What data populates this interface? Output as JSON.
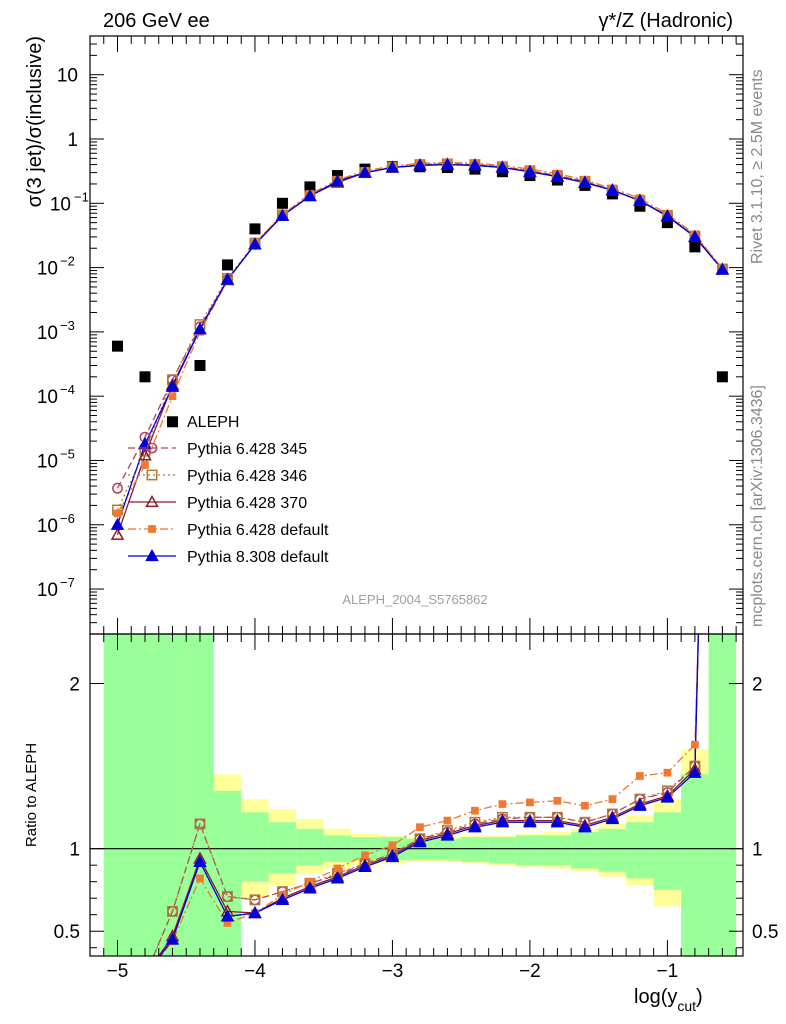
{
  "header": {
    "left": "206 GeV ee",
    "right": "γ*/Z (Hadronic)"
  },
  "side_text": {
    "rivet": "Rivet 3.1.10, ≥ 2.5M events",
    "mcplots": "mcplots.cern.ch [arXiv:1306.3436]"
  },
  "analysis_id": "ALEPH_2004_S5765862",
  "chart_data": [
    {
      "type": "scatter",
      "panel": "main",
      "ylabel": "σ(3 jet)/σ(inclusive)",
      "yscale": "log",
      "ylim": [
        2e-08,
        40
      ],
      "xlim": [
        -5.2,
        -0.45
      ],
      "ytick_labels": [
        "10^-7",
        "10^-6",
        "10^-5",
        "10^-4",
        "10^-3",
        "10^-2",
        "10^-1",
        "1",
        "10"
      ],
      "legend": {
        "placement": "lower-left",
        "entries": [
          "ALEPH",
          "Pythia 6.428 345",
          "Pythia 6.428 346",
          "Pythia 6.428 370",
          "Pythia 6.428 default",
          "Pythia 8.308 default"
        ]
      },
      "x": [
        -5.0,
        -4.8,
        -4.6,
        -4.4,
        -4.2,
        -4.0,
        -3.8,
        -3.6,
        -3.4,
        -3.2,
        -3.0,
        -2.8,
        -2.6,
        -2.4,
        -2.2,
        -2.0,
        -1.8,
        -1.6,
        -1.4,
        -1.2,
        -1.0,
        -0.8,
        -0.6
      ],
      "series": [
        {
          "name": "ALEPH",
          "color": "#000000",
          "marker": "square-filled",
          "line": "none",
          "values": [
            0.0006,
            0.0002,
            4e-05,
            0.0003,
            0.011,
            0.04,
            0.1,
            0.18,
            0.27,
            0.34,
            0.37,
            0.37,
            0.36,
            0.34,
            0.31,
            0.27,
            0.23,
            0.19,
            0.14,
            0.09,
            0.05,
            0.021,
            0.0002
          ]
        },
        {
          "name": "Pythia 6.428 345",
          "color": "#b04060",
          "marker": "circle-open",
          "line": "dashed",
          "values": [
            3.7e-06,
            2.3e-05,
            0.00018,
            0.0012,
            0.0065,
            0.023,
            0.065,
            0.13,
            0.22,
            0.3,
            0.36,
            0.4,
            0.41,
            0.4,
            0.37,
            0.32,
            0.27,
            0.22,
            0.16,
            0.11,
            0.065,
            0.031,
            0.0095
          ]
        },
        {
          "name": "Pythia 6.428 346",
          "color": "#b07838",
          "marker": "square-open",
          "line": "dotted",
          "values": [
            1.7e-06,
            1.4e-05,
            0.00018,
            0.0013,
            0.0068,
            0.024,
            0.066,
            0.13,
            0.22,
            0.3,
            0.36,
            0.4,
            0.41,
            0.4,
            0.37,
            0.32,
            0.27,
            0.22,
            0.16,
            0.11,
            0.065,
            0.031,
            0.0095
          ]
        },
        {
          "name": "Pythia 6.428 370",
          "color": "#8b1a2b",
          "marker": "triangle-open",
          "line": "solid",
          "values": [
            7e-07,
            1.2e-05,
            0.00015,
            0.0011,
            0.0064,
            0.023,
            0.064,
            0.13,
            0.21,
            0.3,
            0.36,
            0.39,
            0.4,
            0.39,
            0.36,
            0.31,
            0.26,
            0.21,
            0.16,
            0.11,
            0.063,
            0.03,
            0.0093
          ]
        },
        {
          "name": "Pythia 6.428 default",
          "color": "#f07830",
          "marker": "square-filled-small",
          "line": "dashdot",
          "values": [
            1.5e-06,
            8.5e-06,
            0.0001,
            0.001,
            0.0062,
            0.024,
            0.067,
            0.14,
            0.23,
            0.32,
            0.38,
            0.42,
            0.43,
            0.42,
            0.39,
            0.34,
            0.29,
            0.23,
            0.17,
            0.12,
            0.068,
            0.033,
            0.0097
          ]
        },
        {
          "name": "Pythia 8.308 default",
          "color": "#0000dd",
          "marker": "triangle-filled",
          "line": "solid",
          "values": [
            1e-06,
            1.8e-05,
            0.00014,
            0.0011,
            0.0065,
            0.023,
            0.064,
            0.13,
            0.22,
            0.3,
            0.36,
            0.39,
            0.4,
            0.39,
            0.36,
            0.31,
            0.26,
            0.21,
            0.16,
            0.11,
            0.063,
            0.03,
            0.0093
          ]
        }
      ]
    },
    {
      "type": "line",
      "panel": "ratio",
      "ylabel": "Ratio to ALEPH",
      "xlabel": "log(y_cut)",
      "ylim": [
        0.35,
        2.3
      ],
      "xlim": [
        -5.2,
        -0.45
      ],
      "ytick_labels": [
        "0.5",
        "1",
        "2"
      ],
      "xtick_labels": [
        "−5",
        "−4",
        "−3",
        "−2",
        "−1"
      ],
      "x": [
        -4.6,
        -4.4,
        -4.2,
        -4.0,
        -3.8,
        -3.6,
        -3.4,
        -3.2,
        -3.0,
        -2.8,
        -2.6,
        -2.4,
        -2.2,
        -2.0,
        -1.8,
        -1.6,
        -1.4,
        -1.2,
        -1.0,
        -0.8
      ],
      "band_edges": [
        -5.1,
        -4.5,
        -4.3,
        -4.1,
        -3.9,
        -3.7,
        -3.5,
        -3.3,
        -3.1,
        -2.9,
        -2.7,
        -2.5,
        -2.3,
        -2.1,
        -1.9,
        -1.7,
        -1.5,
        -1.3,
        -1.1,
        -0.9,
        -0.7,
        -0.5
      ],
      "band_stat": [
        [
          0.35,
          2.3
        ],
        [
          0.35,
          2.3
        ],
        [
          0.35,
          1.35
        ],
        [
          0.8,
          1.22
        ],
        [
          0.85,
          1.16
        ],
        [
          0.9,
          1.12
        ],
        [
          0.92,
          1.08
        ],
        [
          0.93,
          1.07
        ],
        [
          0.93,
          1.07
        ],
        [
          0.93,
          1.06
        ],
        [
          0.93,
          1.06
        ],
        [
          0.92,
          1.07
        ],
        [
          0.91,
          1.07
        ],
        [
          0.9,
          1.08
        ],
        [
          0.9,
          1.08
        ],
        [
          0.88,
          1.1
        ],
        [
          0.86,
          1.12
        ],
        [
          0.82,
          1.16
        ],
        [
          0.75,
          1.22
        ],
        [
          0.35,
          1.45
        ],
        [
          0.35,
          2.3
        ]
      ],
      "band_total": [
        [
          0.35,
          2.3
        ],
        [
          0.35,
          2.3
        ],
        [
          0.45,
          1.45
        ],
        [
          0.7,
          1.3
        ],
        [
          0.78,
          1.24
        ],
        [
          0.85,
          1.18
        ],
        [
          0.88,
          1.12
        ],
        [
          0.9,
          1.09
        ],
        [
          0.91,
          1.08
        ],
        [
          0.92,
          1.07
        ],
        [
          0.92,
          1.07
        ],
        [
          0.91,
          1.08
        ],
        [
          0.9,
          1.08
        ],
        [
          0.89,
          1.09
        ],
        [
          0.88,
          1.1
        ],
        [
          0.86,
          1.12
        ],
        [
          0.83,
          1.15
        ],
        [
          0.78,
          1.2
        ],
        [
          0.65,
          1.3
        ],
        [
          0.35,
          1.6
        ],
        [
          0.35,
          2.3
        ]
      ],
      "series": [
        {
          "name": "Pythia 6.428 345",
          "color": "#b04060",
          "marker": "circle-open",
          "line": "dashed",
          "values": [
            0.62,
            1.15,
            0.71,
            0.69,
            0.74,
            0.79,
            0.84,
            0.91,
            0.97,
            1.06,
            1.1,
            1.15,
            1.18,
            1.19,
            1.19,
            1.16,
            1.21,
            1.3,
            1.34,
            1.5
          ]
        },
        {
          "name": "Pythia 6.428 346",
          "color": "#b07838",
          "marker": "square-open",
          "line": "dotted",
          "values": [
            0.62,
            1.15,
            0.71,
            0.69,
            0.74,
            0.79,
            0.85,
            0.91,
            0.97,
            1.06,
            1.11,
            1.16,
            1.19,
            1.19,
            1.19,
            1.16,
            1.21,
            1.3,
            1.35,
            1.5
          ]
        },
        {
          "name": "Pythia 6.428 370",
          "color": "#8b1a2b",
          "marker": "triangle-open",
          "line": "solid",
          "values": [
            0.47,
            0.94,
            0.62,
            0.61,
            0.7,
            0.77,
            0.83,
            0.9,
            0.96,
            1.05,
            1.09,
            1.14,
            1.17,
            1.17,
            1.17,
            1.14,
            1.19,
            1.27,
            1.32,
            1.48
          ]
        },
        {
          "name": "Pythia 6.428 default",
          "color": "#f07830",
          "marker": "square-filled-small",
          "line": "dashdot",
          "values": [
            0.44,
            0.82,
            0.55,
            0.61,
            0.72,
            0.8,
            0.88,
            0.96,
            1.02,
            1.13,
            1.17,
            1.23,
            1.27,
            1.28,
            1.29,
            1.26,
            1.3,
            1.44,
            1.46,
            1.63
          ]
        },
        {
          "name": "Pythia 8.308 default",
          "color": "#0000dd",
          "marker": "triangle-filled",
          "line": "solid",
          "values": [
            0.45,
            0.92,
            0.59,
            0.61,
            0.69,
            0.76,
            0.82,
            0.89,
            0.95,
            1.04,
            1.08,
            1.13,
            1.16,
            1.16,
            1.16,
            1.13,
            1.18,
            1.26,
            1.31,
            1.46
          ]
        }
      ]
    }
  ]
}
